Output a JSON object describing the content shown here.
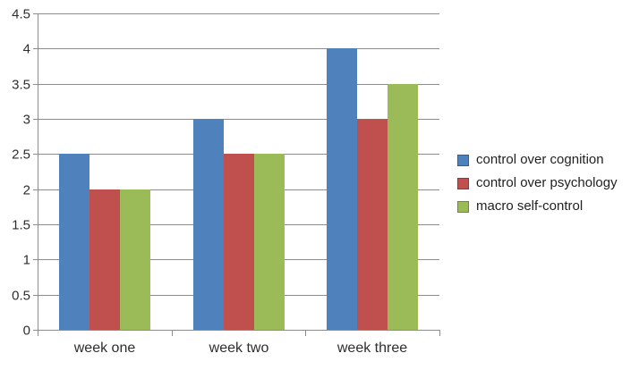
{
  "chart_data": {
    "type": "bar",
    "title": "",
    "xlabel": "",
    "ylabel": "",
    "categories": [
      "week one",
      "week two",
      "week three"
    ],
    "series": [
      {
        "name": "control over cognition",
        "color": "#4F81BD",
        "values": [
          2.5,
          3,
          4
        ]
      },
      {
        "name": "control over psychology",
        "color": "#C0504D",
        "values": [
          2,
          2.5,
          3
        ]
      },
      {
        "name": "macro self-control",
        "color": "#9BBB59",
        "values": [
          2,
          2.5,
          3.5
        ]
      }
    ],
    "ylim": [
      0,
      4.5
    ],
    "yticks": [
      0,
      0.5,
      1,
      1.5,
      2,
      2.5,
      3,
      3.5,
      4,
      4.5
    ],
    "grid": true,
    "legend_position": "right",
    "colors": {
      "gridline": "#8C8C8C",
      "axis": "#8C8C8C",
      "tick_text": "#2e2e2e",
      "legend_text": "#1f1f1f",
      "background": "#FFFFFF"
    }
  }
}
